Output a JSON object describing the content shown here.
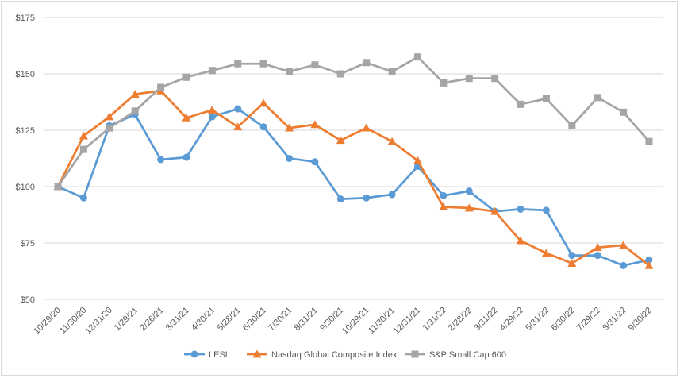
{
  "chart_data": {
    "type": "line",
    "categories": [
      "10/29/20",
      "11/30/20",
      "12/31/20",
      "1/29/21",
      "2/26/21",
      "3/31/21",
      "4/30/21",
      "5/28/21",
      "6/30/21",
      "7/30/21",
      "8/31/21",
      "9/30/21",
      "10/29/21",
      "11/30/21",
      "12/31/21",
      "1/31/22",
      "2/28/22",
      "3/31/22",
      "4/29/22",
      "5/31/22",
      "6/30/22",
      "7/29/22",
      "8/31/22",
      "9/30/22"
    ],
    "y_ticks": [
      "$50",
      "$75",
      "$100",
      "$125",
      "$150",
      "$175"
    ],
    "y_tick_values": [
      50,
      75,
      100,
      125,
      150,
      175
    ],
    "ylim": [
      50,
      175
    ],
    "grid": true,
    "legend_position": "bottom",
    "series": [
      {
        "name": "LESL",
        "color": "#5b9bd5",
        "marker": "circle",
        "values": [
          100,
          95,
          127,
          132,
          112,
          113,
          131,
          134.5,
          126.5,
          112.5,
          111,
          94.5,
          95,
          96.5,
          109,
          96,
          98,
          89,
          90,
          89.5,
          69.5,
          69.5,
          65,
          67.5
        ]
      },
      {
        "name": "Nasdaq Global Composite Index",
        "color": "#ed7d31",
        "marker": "triangle",
        "values": [
          100,
          122.5,
          131,
          141,
          142.5,
          130.5,
          134,
          126.5,
          137,
          126,
          127.5,
          120.5,
          126,
          120,
          111.5,
          91,
          90.5,
          89,
          76,
          70.5,
          66,
          73,
          74,
          65
        ]
      },
      {
        "name": "S&P Small Cap 600",
        "color": "#a5a5a5",
        "marker": "square",
        "values": [
          100,
          116.5,
          126,
          133.5,
          144,
          148.5,
          151.5,
          154.5,
          154.5,
          151,
          154,
          150,
          155,
          151,
          157.5,
          146,
          148,
          148,
          136.5,
          139,
          127,
          139.5,
          133,
          120
        ]
      }
    ]
  }
}
